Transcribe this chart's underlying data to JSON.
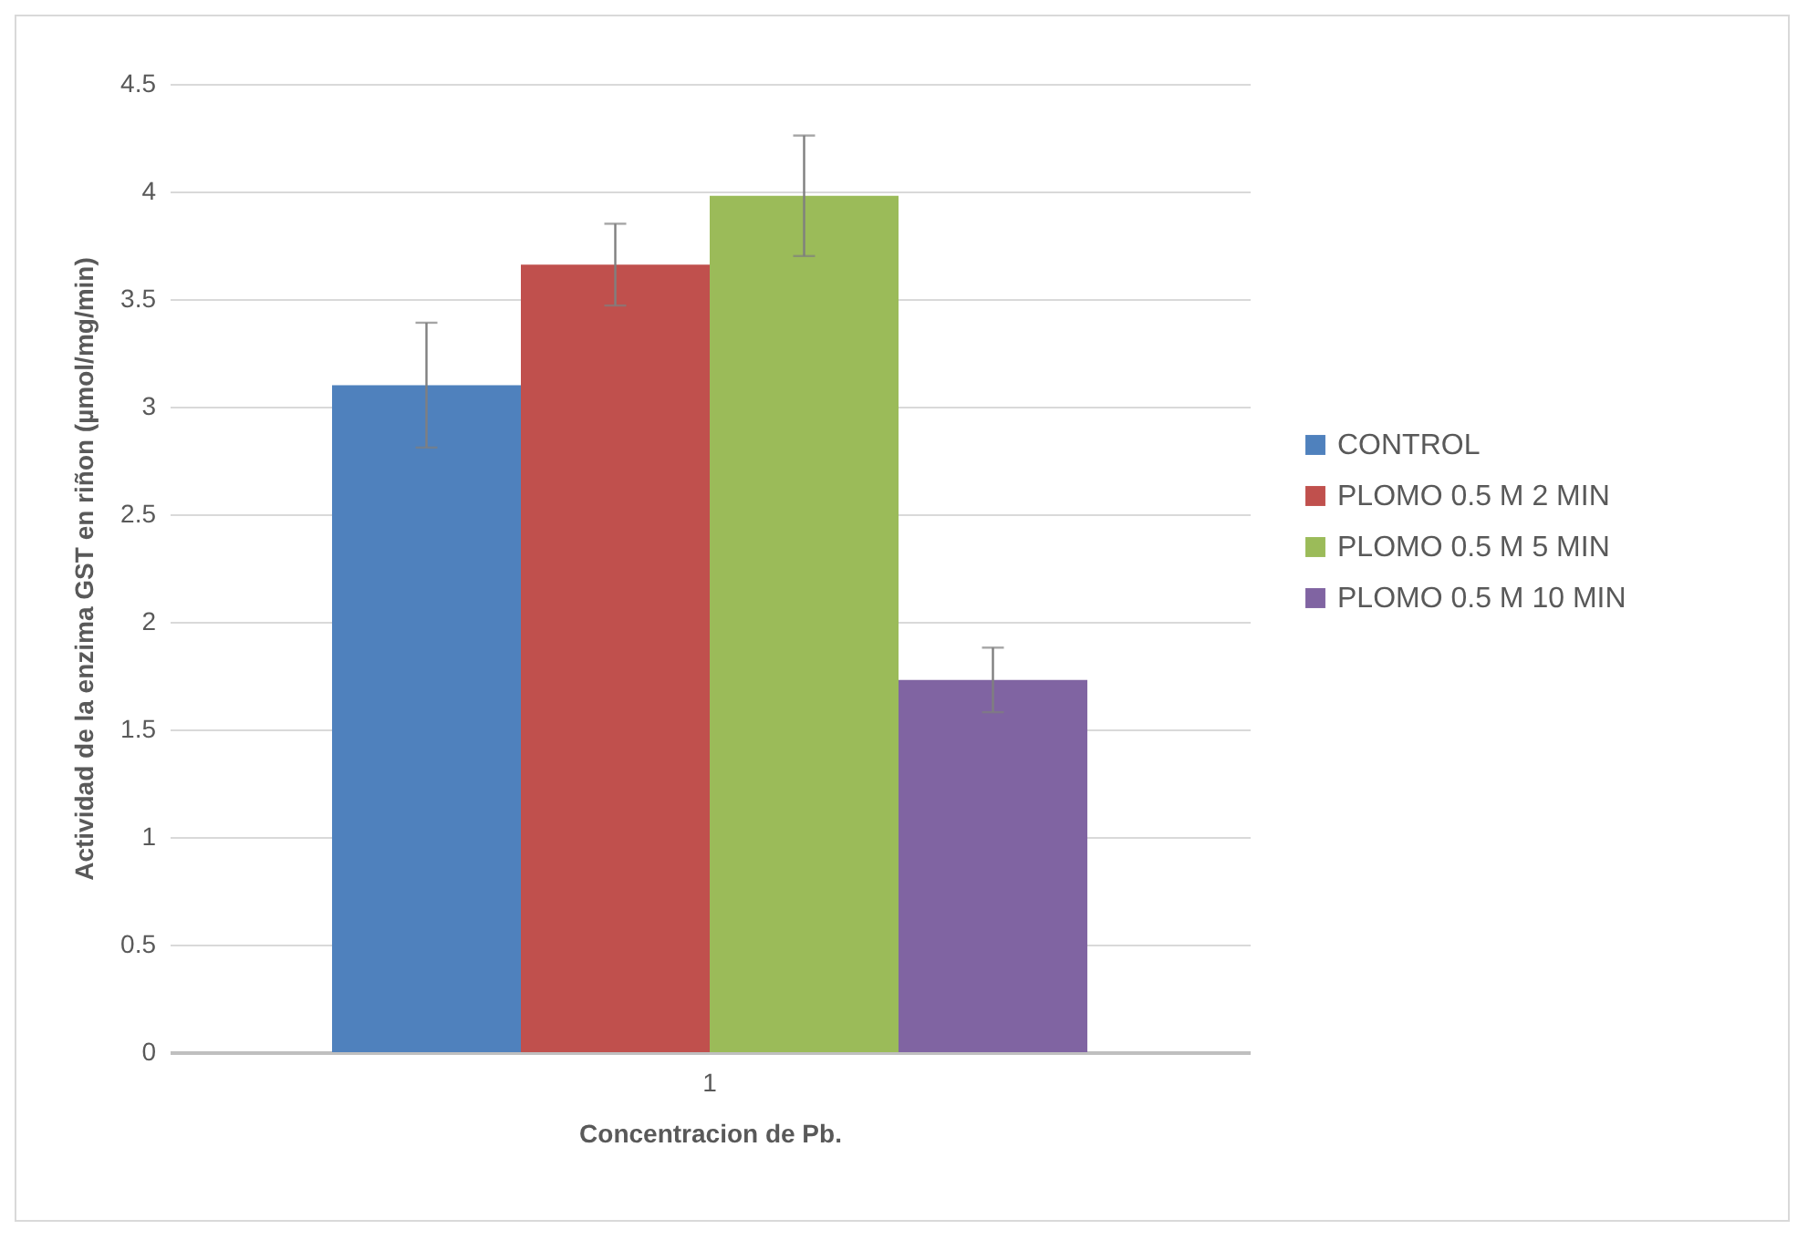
{
  "chart_data": {
    "type": "bar",
    "xlabel": "Concentracion de Pb.",
    "ylabel": "Actividad de la enzima GST en riñon (µmol/mg/min)",
    "categories": [
      "1"
    ],
    "series": [
      {
        "name": "CONTROL",
        "color": "#4f81bd",
        "values": [
          3.1
        ],
        "errors": [
          0.29
        ]
      },
      {
        "name": "PLOMO 0.5 M 2 MIN",
        "color": "#c0504d",
        "values": [
          3.66
        ],
        "errors": [
          0.19
        ]
      },
      {
        "name": "PLOMO 0.5 M 5 MIN",
        "color": "#9bbb59",
        "values": [
          3.98
        ],
        "errors": [
          0.28
        ]
      },
      {
        "name": "PLOMO 0.5 M 10 MIN",
        "color": "#8064a2",
        "values": [
          1.73
        ],
        "errors": [
          0.15
        ]
      }
    ],
    "ylim": [
      0,
      4.5
    ],
    "yticks": [
      0,
      0.5,
      1,
      1.5,
      2,
      2.5,
      3,
      3.5,
      4,
      4.5
    ],
    "grid": "y",
    "legend": "right"
  }
}
